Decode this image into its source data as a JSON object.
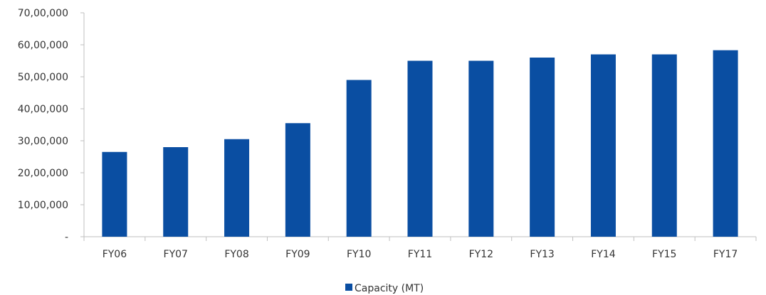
{
  "chart_data": {
    "type": "bar",
    "title": "",
    "xlabel": "",
    "ylabel": "",
    "categories": [
      "FY06",
      "FY07",
      "FY08",
      "FY09",
      "FY10",
      "FY11",
      "FY12",
      "FY13",
      "FY14",
      "FY15",
      "FY17"
    ],
    "series": [
      {
        "name": "Capacity (MT)",
        "color": "#0a4ea2",
        "values": [
          2650000,
          2800000,
          3050000,
          3550000,
          4900000,
          5500000,
          5500000,
          5600000,
          5700000,
          5700000,
          5830000
        ]
      }
    ],
    "ylim": [
      0,
      7000000
    ],
    "y_ticks": [
      0,
      1000000,
      2000000,
      3000000,
      4000000,
      5000000,
      6000000,
      7000000
    ],
    "y_tick_labels": [
      "-",
      "10,00,000",
      "20,00,000",
      "30,00,000",
      "40,00,000",
      "50,00,000",
      "60,00,000",
      "70,00,000"
    ],
    "grid": false,
    "legend": {
      "position": "bottom",
      "entries": [
        "Capacity (MT)"
      ]
    }
  }
}
